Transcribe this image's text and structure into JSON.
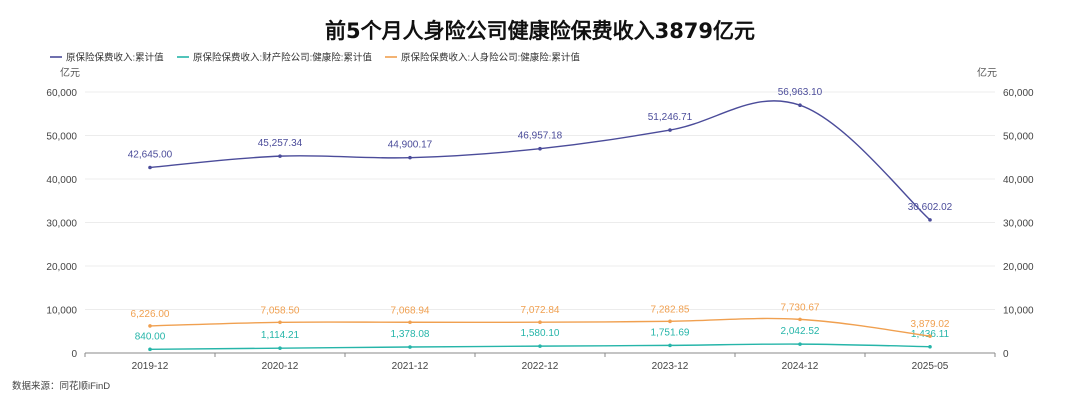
{
  "chart_data": {
    "type": "line",
    "title": "前5个月人身险公司健康险保费收入3879亿元",
    "categories": [
      "2019-12",
      "2020-12",
      "2021-12",
      "2022-12",
      "2023-12",
      "2024-12",
      "2025-05"
    ],
    "y_unit_left": "亿元",
    "y_unit_right": "亿元",
    "ylim": [
      0,
      60000
    ],
    "yticks": [
      0,
      10000,
      20000,
      30000,
      40000,
      50000,
      60000
    ],
    "ytick_labels": [
      "0",
      "10,000",
      "20,000",
      "30,000",
      "40,000",
      "50,000",
      "60,000"
    ],
    "grid": true,
    "legend_position": "top-left",
    "series": [
      {
        "name": "原保险保费收入:累计值",
        "color": "#4b4c9a",
        "values": [
          42645.0,
          45257.34,
          44900.17,
          46957.18,
          51246.71,
          56963.1,
          30602.02
        ],
        "labels": [
          "42,645.00",
          "45,257.34",
          "44,900.17",
          "46,957.18",
          "51,246.71",
          "56,963.10",
          "30,602.02"
        ]
      },
      {
        "name": "原保险保费收入:财产险公司:健康险:累计值",
        "color": "#26b5a9",
        "values": [
          840.0,
          1114.21,
          1378.08,
          1580.1,
          1751.69,
          2042.52,
          1436.11
        ],
        "labels": [
          "840.00",
          "1,114.21",
          "1,378.08",
          "1,580.10",
          "1,751.69",
          "2,042.52",
          "1,436.11"
        ]
      },
      {
        "name": "原保险保费收入:人身险公司:健康险:累计值",
        "color": "#f0a050",
        "values": [
          6226.0,
          7058.5,
          7068.94,
          7072.84,
          7282.85,
          7730.67,
          3879.02
        ],
        "labels": [
          "6,226.00",
          "7,058.50",
          "7,068.94",
          "7,072.84",
          "7,282.85",
          "7,730.67",
          "3,879.02"
        ]
      }
    ],
    "source": "数据来源：同花顺iFinD"
  }
}
